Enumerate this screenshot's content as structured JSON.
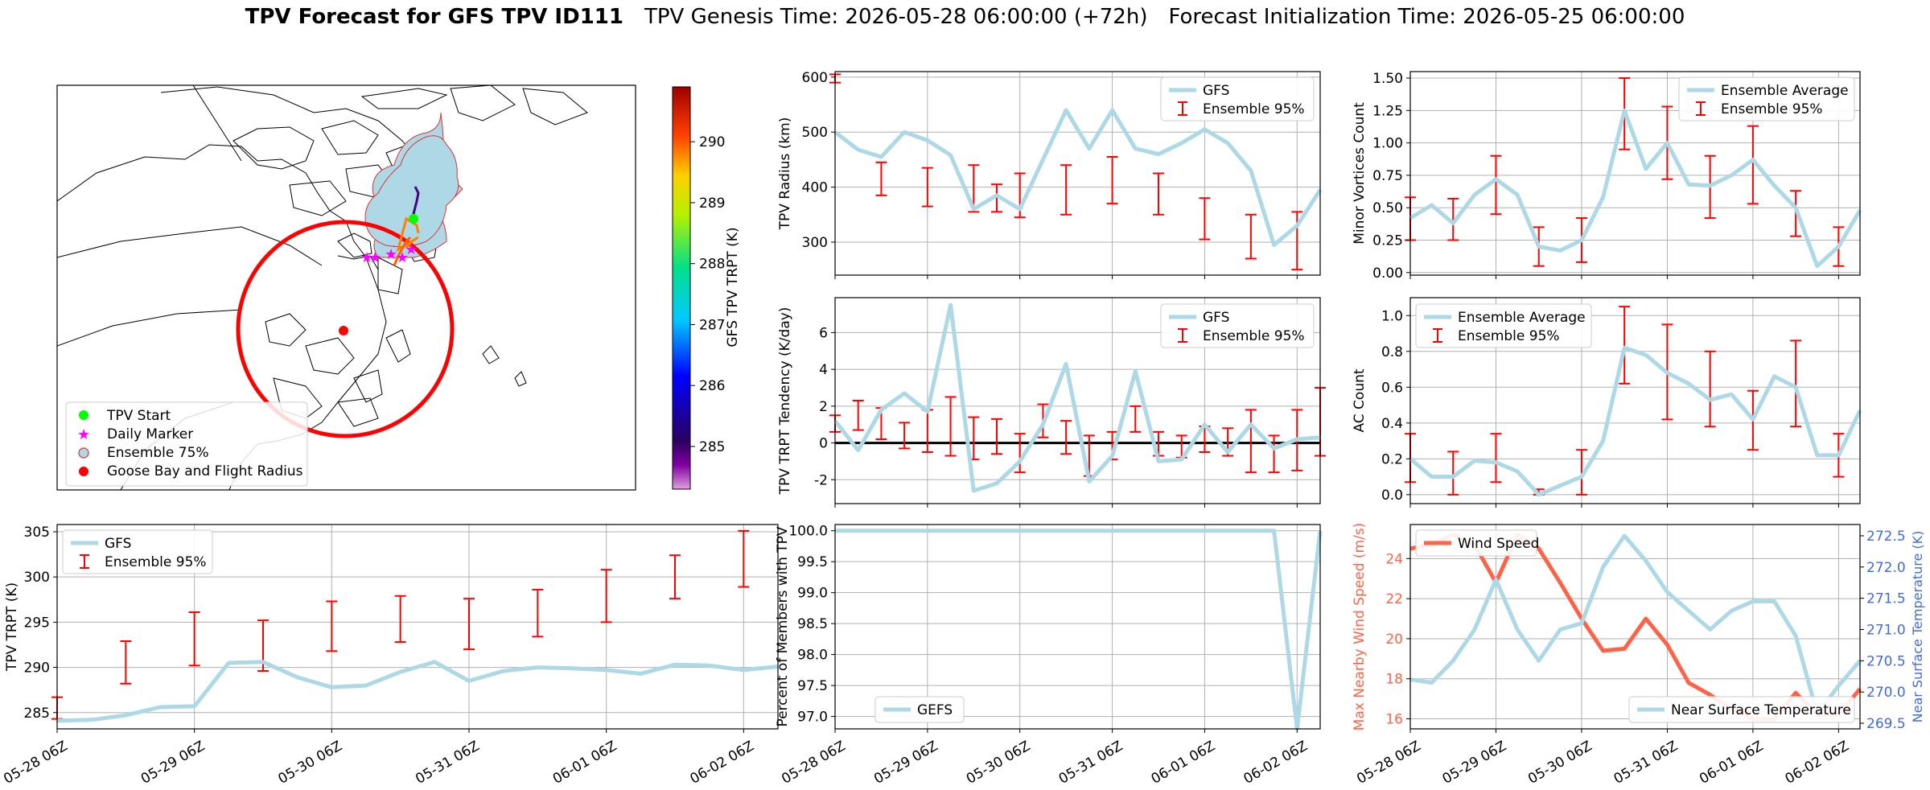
{
  "title": {
    "bold": "TPV Forecast for GFS TPV ID111",
    "genesis": "TPV Genesis Time: 2026-05-28 06:00:00 (+72h)",
    "init": "Forecast Initialization Time: 2026-05-25 06:00:00"
  },
  "colors": {
    "gfs": "#add8e6",
    "ens": "#ff0000",
    "wind": "#ff6347",
    "temp_axis": "#4169e1"
  },
  "map": {
    "legend": [
      "TPV Start",
      "Daily Marker",
      "Ensemble 75%",
      "Goose Bay and Flight Radius"
    ],
    "colorbar": {
      "label": "GFS TPV TRPT (K)",
      "ticks": [
        285,
        286,
        287,
        288,
        289,
        290
      ],
      "range": [
        284.3,
        290.9
      ]
    }
  },
  "chart_data": [
    {
      "id": "radius",
      "type": "line",
      "xlabel": "",
      "ylabel": "TPV Radius (km)",
      "ylim": [
        240,
        610
      ],
      "yticks": [
        300,
        400,
        500,
        600
      ],
      "grid": true,
      "legend_position": "top-right",
      "xticks": [
        "05-28 06Z",
        "05-29 06Z",
        "05-30 06Z",
        "05-31 06Z",
        "06-01 06Z",
        "06-02 06Z"
      ],
      "x_hours_from_start": [
        0,
        6,
        12,
        18,
        24,
        30,
        36,
        42,
        48,
        54,
        60,
        66,
        72,
        78,
        84,
        90,
        96,
        102,
        108,
        114,
        120,
        126
      ],
      "series": [
        {
          "name": "GFS",
          "values": [
            500,
            468,
            455,
            500,
            485,
            458,
            360,
            385,
            360,
            450,
            540,
            470,
            540,
            470,
            460,
            480,
            505,
            480,
            430,
            295,
            330,
            395
          ]
        }
      ],
      "ensemble_95": {
        "name": "Ensemble 95%",
        "x_hours_from_start": [
          0,
          12,
          24,
          36,
          42,
          48,
          60,
          72,
          84,
          96,
          108,
          120
        ],
        "low": [
          590,
          385,
          365,
          355,
          355,
          345,
          350,
          370,
          350,
          305,
          270,
          250
        ],
        "high": [
          605,
          445,
          435,
          440,
          405,
          425,
          440,
          455,
          425,
          380,
          350,
          355
        ]
      }
    },
    {
      "id": "minor",
      "type": "line",
      "xlabel": "",
      "ylabel": "Minor Vortices Count",
      "ylim": [
        -0.02,
        1.55
      ],
      "yticks": [
        0.0,
        0.25,
        0.5,
        0.75,
        1.0,
        1.25,
        1.5
      ],
      "grid": true,
      "legend_position": "top-right",
      "xticks": [
        "05-28 06Z",
        "05-29 06Z",
        "05-30 06Z",
        "05-31 06Z",
        "06-01 06Z",
        "06-02 06Z"
      ],
      "x_hours_from_start": [
        0,
        6,
        12,
        18,
        24,
        30,
        36,
        42,
        48,
        54,
        60,
        66,
        72,
        78,
        84,
        90,
        96,
        102,
        108,
        114,
        120,
        126
      ],
      "series": [
        {
          "name": "Ensemble Average",
          "values": [
            0.42,
            0.52,
            0.38,
            0.6,
            0.72,
            0.6,
            0.2,
            0.17,
            0.25,
            0.58,
            1.25,
            0.8,
            1.0,
            0.68,
            0.67,
            0.75,
            0.87,
            0.67,
            0.5,
            0.05,
            0.2,
            0.48
          ]
        }
      ],
      "ensemble_95": {
        "name": "Ensemble 95%",
        "x_hours_from_start": [
          0,
          12,
          24,
          36,
          48,
          60,
          72,
          84,
          96,
          108,
          120
        ],
        "low": [
          0.25,
          0.25,
          0.45,
          0.05,
          0.08,
          0.95,
          0.72,
          0.42,
          0.53,
          0.28,
          0.05
        ],
        "high": [
          0.58,
          0.57,
          0.9,
          0.35,
          0.42,
          1.5,
          1.28,
          0.9,
          1.13,
          0.63,
          0.35
        ]
      }
    },
    {
      "id": "tendency",
      "type": "line",
      "xlabel": "",
      "ylabel": "TPV TRPT Tendency (K/day)",
      "ylim": [
        -3.3,
        7.9
      ],
      "yticks": [
        -2,
        0,
        2,
        4,
        6
      ],
      "zero_line": true,
      "grid": true,
      "legend_position": "top-right",
      "xticks": [
        "05-28 06Z",
        "05-29 06Z",
        "05-30 06Z",
        "05-31 06Z",
        "06-01 06Z",
        "06-02 06Z"
      ],
      "x_hours_from_start": [
        0,
        6,
        12,
        18,
        24,
        30,
        36,
        42,
        48,
        54,
        60,
        66,
        72,
        78,
        84,
        90,
        96,
        102,
        108,
        114,
        120,
        126
      ],
      "series": [
        {
          "name": "GFS",
          "values": [
            1.2,
            -0.4,
            1.8,
            2.7,
            1.7,
            7.5,
            -2.6,
            -2.2,
            -1.0,
            1.0,
            4.3,
            -2.1,
            -0.7,
            3.9,
            -1.0,
            -0.9,
            1.0,
            -0.5,
            1.0,
            -0.3,
            0.2,
            0.3
          ]
        }
      ],
      "ensemble_95": {
        "name": "Ensemble 95%",
        "x_hours_from_start": [
          0,
          6,
          12,
          18,
          24,
          30,
          36,
          42,
          48,
          54,
          60,
          66,
          72,
          78,
          84,
          90,
          96,
          102,
          108,
          114,
          120,
          126
        ],
        "low": [
          0.6,
          0.7,
          0.2,
          -0.3,
          -0.5,
          -0.7,
          -0.9,
          -0.6,
          -1.6,
          0.3,
          -0.6,
          -1.8,
          -0.9,
          0.6,
          -0.7,
          -0.8,
          -0.5,
          -0.7,
          -1.6,
          -1.6,
          -1.5,
          -0.7
        ],
        "high": [
          1.5,
          2.3,
          1.9,
          1.1,
          1.8,
          2.5,
          1.4,
          1.3,
          0.5,
          2.1,
          1.2,
          0.4,
          0.6,
          2.0,
          0.6,
          0.4,
          0.9,
          0.8,
          1.8,
          0.4,
          1.8,
          3.0
        ]
      }
    },
    {
      "id": "ac",
      "type": "line",
      "xlabel": "",
      "ylabel": "AC Count",
      "ylim": [
        -0.05,
        1.1
      ],
      "yticks": [
        0.0,
        0.2,
        0.4,
        0.6,
        0.8,
        1.0
      ],
      "grid": true,
      "legend_position": "top-left",
      "xticks": [
        "05-28 06Z",
        "05-29 06Z",
        "05-30 06Z",
        "05-31 06Z",
        "06-01 06Z",
        "06-02 06Z"
      ],
      "x_hours_from_start": [
        0,
        6,
        12,
        18,
        24,
        30,
        36,
        42,
        48,
        54,
        60,
        66,
        72,
        78,
        84,
        90,
        96,
        102,
        108,
        114,
        120,
        126
      ],
      "series": [
        {
          "name": "Ensemble Average",
          "values": [
            0.2,
            0.1,
            0.1,
            0.19,
            0.18,
            0.13,
            0.0,
            0.05,
            0.1,
            0.3,
            0.82,
            0.78,
            0.68,
            0.62,
            0.53,
            0.56,
            0.42,
            0.66,
            0.6,
            0.22,
            0.22,
            0.47
          ]
        }
      ],
      "ensemble_95": {
        "name": "Ensemble 95%",
        "x_hours_from_start": [
          0,
          12,
          24,
          36,
          48,
          60,
          72,
          84,
          96,
          108,
          120
        ],
        "low": [
          0.07,
          0.0,
          0.07,
          0.0,
          0.0,
          0.62,
          0.42,
          0.38,
          0.25,
          0.38,
          0.1
        ],
        "high": [
          0.34,
          0.24,
          0.34,
          0.03,
          0.25,
          1.05,
          0.95,
          0.8,
          0.58,
          0.86,
          0.34
        ]
      }
    },
    {
      "id": "trpt",
      "type": "line",
      "xlabel": "",
      "ylabel": "TPV TRPT (K)",
      "ylim": [
        283.2,
        305.8
      ],
      "yticks": [
        285,
        290,
        295,
        300,
        305
      ],
      "grid": true,
      "legend_position": "top-left",
      "xticks": [
        "05-28 06Z",
        "05-29 06Z",
        "05-30 06Z",
        "05-31 06Z",
        "06-01 06Z",
        "06-02 06Z"
      ],
      "x_hours_from_start": [
        0,
        6,
        12,
        18,
        24,
        30,
        36,
        42,
        48,
        54,
        60,
        66,
        72,
        78,
        84,
        90,
        96,
        102,
        108,
        114,
        120,
        126
      ],
      "series": [
        {
          "name": "GFS",
          "values": [
            284.1,
            284.2,
            284.7,
            285.6,
            285.7,
            290.5,
            290.6,
            288.9,
            287.8,
            288.0,
            289.5,
            290.6,
            288.5,
            289.6,
            290.0,
            289.9,
            289.7,
            289.3,
            290.3,
            290.2,
            289.7,
            290.1
          ]
        }
      ],
      "ensemble_95": {
        "name": "Ensemble 95%",
        "x_hours_from_start": [
          0,
          12,
          24,
          36,
          48,
          60,
          72,
          84,
          96,
          108,
          120
        ],
        "low": [
          284.3,
          288.2,
          290.2,
          289.6,
          291.8,
          292.8,
          292.0,
          293.4,
          295.0,
          297.6,
          298.9
        ],
        "high": [
          286.7,
          292.9,
          296.1,
          295.2,
          297.3,
          297.9,
          297.6,
          298.6,
          300.8,
          302.4,
          305.1
        ]
      }
    },
    {
      "id": "percent",
      "type": "line",
      "xlabel": "",
      "ylabel": "Percent of Members with TPV",
      "ylim": [
        96.8,
        100.1
      ],
      "yticks": [
        97.0,
        97.5,
        98.0,
        98.5,
        99.0,
        99.5,
        100.0
      ],
      "grid": true,
      "legend_position": "bottom-left",
      "xticks": [
        "05-28 06Z",
        "05-29 06Z",
        "05-30 06Z",
        "05-31 06Z",
        "06-01 06Z",
        "06-02 06Z"
      ],
      "x_hours_from_start": [
        0,
        6,
        12,
        18,
        24,
        30,
        36,
        42,
        48,
        54,
        60,
        66,
        72,
        78,
        84,
        90,
        96,
        102,
        108,
        114,
        120,
        126
      ],
      "series": [
        {
          "name": "GEFS",
          "values": [
            100,
            100,
            100,
            100,
            100,
            100,
            100,
            100,
            100,
            100,
            100,
            100,
            100,
            100,
            100,
            100,
            100,
            100,
            100,
            100,
            96.8,
            100
          ]
        }
      ]
    },
    {
      "id": "wind",
      "type": "line",
      "xlabel": "",
      "ylabel": "Max Nearby Wind Speed (m/s)",
      "ylabel_right": "Near Surface Temperature (K)",
      "ylim": [
        15.5,
        25.7
      ],
      "yticks": [
        16,
        18,
        20,
        22,
        24
      ],
      "ylim_right": [
        269.41,
        272.68
      ],
      "yticks_right": [
        269.5,
        270.0,
        270.5,
        271.0,
        271.5,
        272.0,
        272.5
      ],
      "grid": true,
      "xticks": [
        "05-28 06Z",
        "05-29 06Z",
        "05-30 06Z",
        "05-31 06Z",
        "06-01 06Z",
        "06-02 06Z"
      ],
      "x_hours_from_start": [
        0,
        6,
        12,
        18,
        24,
        30,
        36,
        42,
        48,
        54,
        60,
        66,
        72,
        78,
        84,
        90,
        96,
        102,
        108,
        114,
        120,
        126
      ],
      "series": [
        {
          "name": "Wind Speed",
          "axis": "left",
          "values": [
            24.5,
            24.7,
            25.2,
            24.7,
            22.8,
            25.2,
            24.5,
            22.8,
            21.0,
            19.4,
            19.5,
            21.0,
            19.7,
            17.8,
            17.2,
            16.5,
            16.0,
            16.0,
            17.3,
            16.2,
            16.2,
            17.5
          ]
        },
        {
          "name": "Near Surface Temperature",
          "axis": "right",
          "values": [
            270.2,
            270.15,
            270.5,
            271.0,
            271.8,
            271.0,
            270.5,
            271.0,
            271.1,
            272.0,
            272.5,
            272.1,
            271.6,
            271.3,
            271.0,
            271.3,
            271.45,
            271.45,
            270.9,
            269.65,
            270.1,
            270.5
          ]
        }
      ]
    }
  ]
}
